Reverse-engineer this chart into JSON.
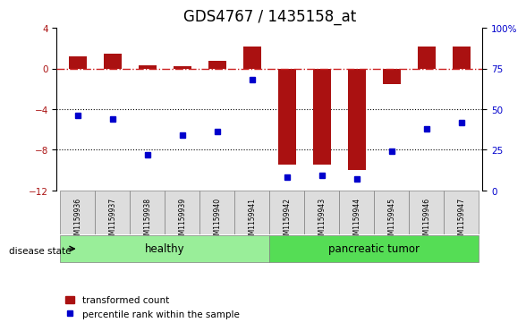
{
  "title": "GDS4767 / 1435158_at",
  "samples": [
    "GSM1159936",
    "GSM1159937",
    "GSM1159938",
    "GSM1159939",
    "GSM1159940",
    "GSM1159941",
    "GSM1159942",
    "GSM1159943",
    "GSM1159944",
    "GSM1159945",
    "GSM1159946",
    "GSM1159947"
  ],
  "red_bars": [
    1.2,
    1.5,
    0.3,
    0.2,
    0.8,
    2.2,
    -9.5,
    -9.5,
    -10.0,
    -1.5,
    2.2,
    2.2
  ],
  "blue_squares": [
    46,
    44,
    22,
    34,
    36,
    68,
    8,
    9,
    7,
    24,
    38,
    42
  ],
  "left_ylim": [
    -12,
    4
  ],
  "right_ylim": [
    0,
    100
  ],
  "left_yticks": [
    4,
    0,
    -4,
    -8,
    -12
  ],
  "right_yticks": [
    100,
    75,
    50,
    25,
    0
  ],
  "right_yticklabels": [
    "100%",
    "75",
    "50",
    "25",
    "0"
  ],
  "hline_y": 0,
  "dotted_lines": [
    -4,
    -8
  ],
  "bar_color": "#AA1111",
  "dot_color": "#0000CC",
  "hline_color": "#CC2222",
  "healthy_label": "healthy",
  "tumor_label": "pancreatic tumor",
  "healthy_color": "#99EE99",
  "tumor_color": "#55DD55",
  "disease_label": "disease state",
  "legend_bar": "transformed count",
  "legend_dot": "percentile rank within the sample",
  "bg_color": "#FFFFFF",
  "plot_bg": "#FFFFFF",
  "title_fontsize": 12,
  "tick_fontsize": 7.5,
  "label_fontsize": 8.5,
  "group_boundary": 6
}
